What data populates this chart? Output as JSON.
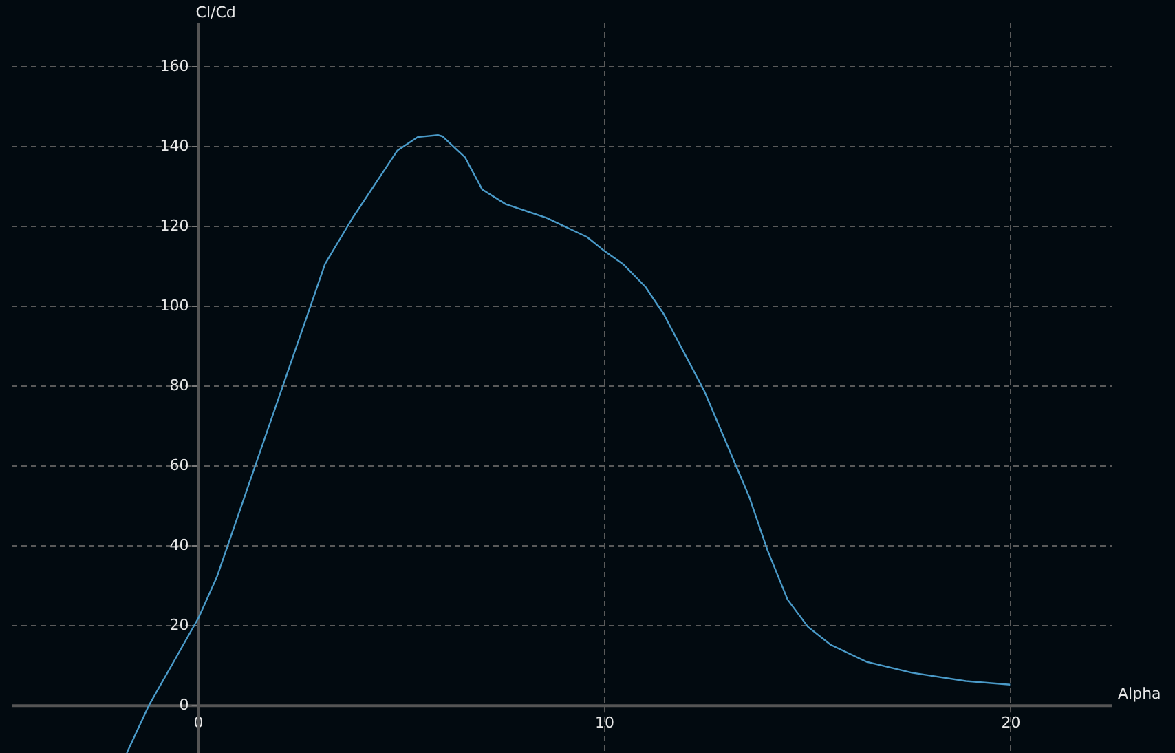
{
  "chart_data": {
    "type": "line",
    "xlabel": "Alpha",
    "ylabel": "Cl/Cd",
    "x": [
      -1.75,
      -1.2,
      0.02,
      0.47,
      1.47,
      2.13,
      2.9,
      3.13,
      3.8,
      4.91,
      5.41,
      5.91,
      6.02,
      6.58,
      7.0,
      7.58,
      8.58,
      9.58,
      10.02,
      10.47,
      11.02,
      11.47,
      12.47,
      13.58,
      14.02,
      14.52,
      15.02,
      15.58,
      16.47,
      17.58,
      18.91,
      20.0
    ],
    "series": [
      {
        "color": "#4a9ac8",
        "values": [
          -12,
          0,
          21.9,
          32.1,
          61.6,
          81,
          103.6,
          110.4,
          121.8,
          138.8,
          142.2,
          142.7,
          142.4,
          137.1,
          129.1,
          125.4,
          122,
          117.2,
          113.6,
          110.4,
          104.7,
          97.9,
          78.6,
          52,
          38.9,
          26.4,
          19.6,
          15.1,
          10.8,
          8.1,
          6.0,
          5.1
        ]
      }
    ],
    "xlim": [
      -4.6,
      22.5
    ],
    "ylim": [
      -12,
      171
    ],
    "xticks": [
      0,
      10,
      20
    ],
    "yticks": [
      0,
      20,
      40,
      60,
      80,
      100,
      120,
      140,
      160
    ],
    "grid": true,
    "marker": "none",
    "line_style": "solid"
  }
}
